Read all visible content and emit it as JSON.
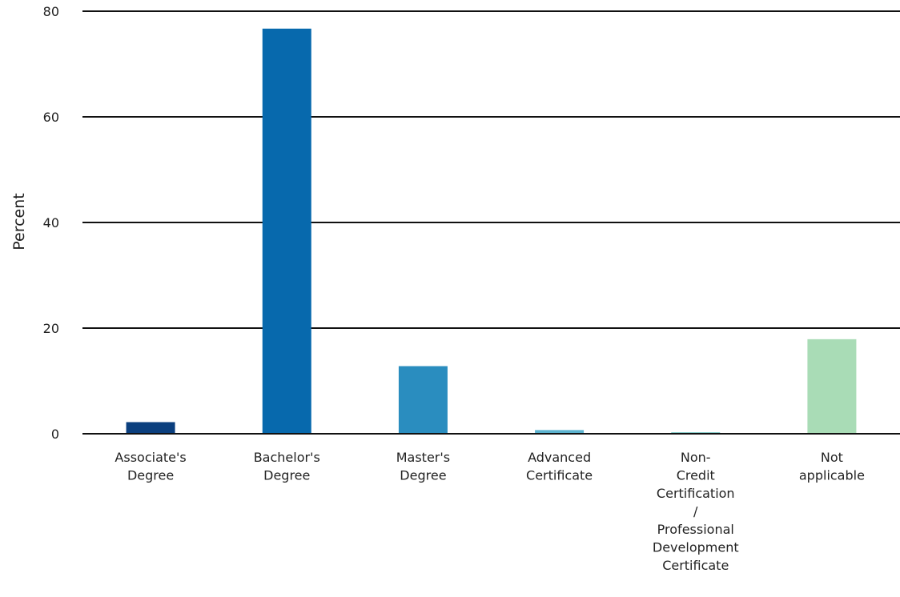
{
  "chart_data": {
    "type": "bar",
    "title": "",
    "xlabel": "",
    "ylabel": "Percent",
    "ylim": [
      0,
      80
    ],
    "yticks": [
      0,
      20,
      40,
      60,
      80
    ],
    "grid": "horizontal",
    "categories": [
      [
        "Associate's",
        "Degree"
      ],
      [
        "Bachelor's",
        "Degree"
      ],
      [
        "Master's",
        "Degree"
      ],
      [
        "Advanced",
        "Certificate"
      ],
      [
        "Non-",
        "Credit",
        "Certification",
        "/",
        "Professional",
        "Development",
        "Certificate"
      ],
      [
        "Not",
        "applicable"
      ]
    ],
    "values": [
      2.2,
      76.7,
      12.8,
      0.7,
      0.3,
      17.9
    ],
    "colors": [
      "#0b3f7e",
      "#0769ad",
      "#2a8dbf",
      "#5cb3cf",
      "#86ccc9",
      "#a9dcb6"
    ]
  }
}
